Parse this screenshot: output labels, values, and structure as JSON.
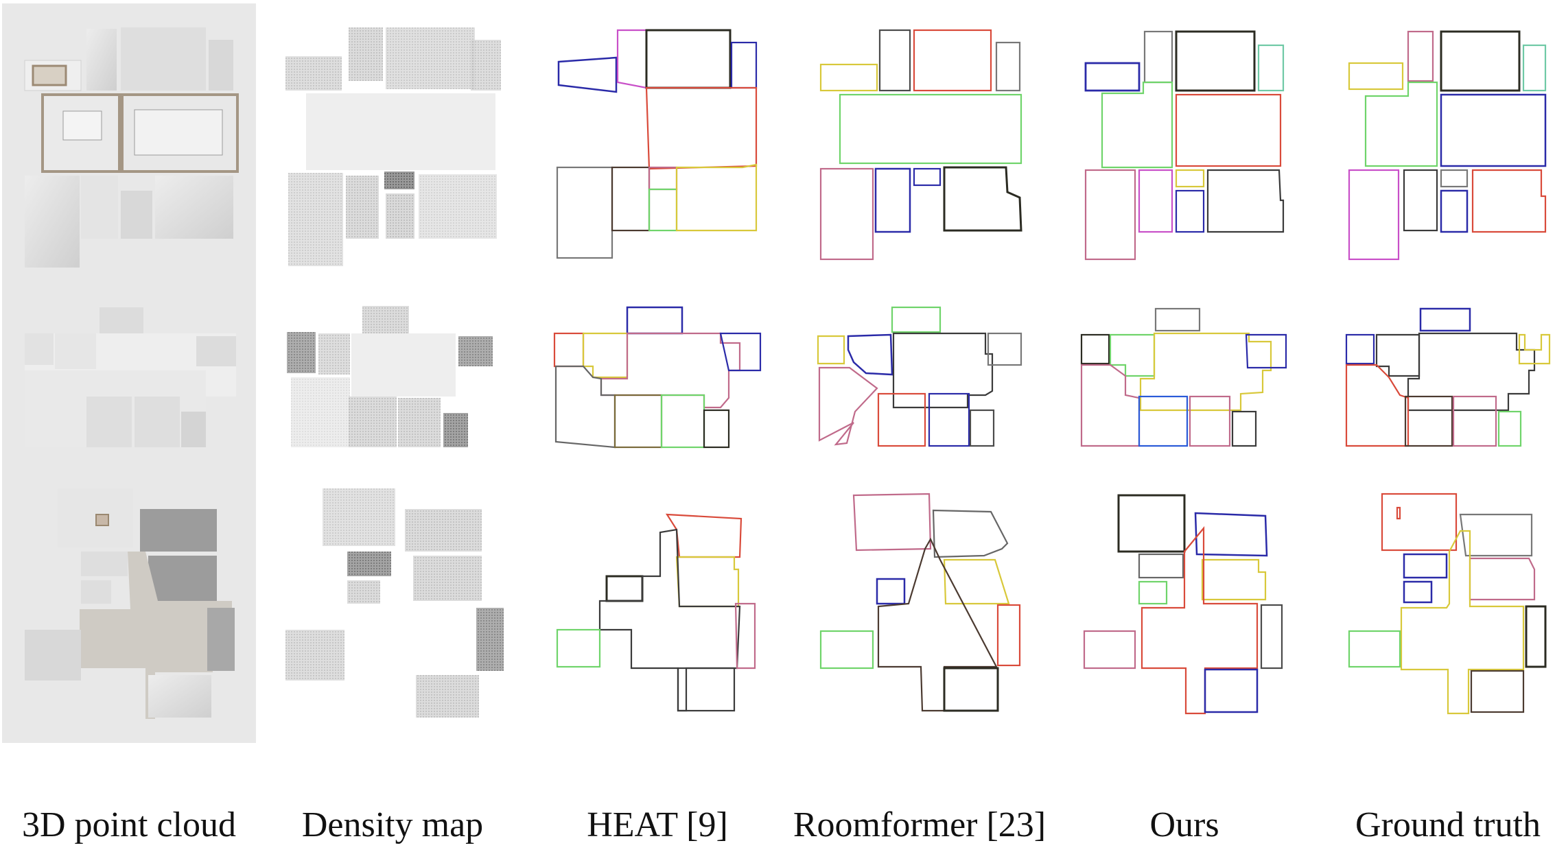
{
  "figure": {
    "columns": [
      {
        "key": "point_cloud",
        "label": "3D point cloud"
      },
      {
        "key": "density",
        "label": "Density map"
      },
      {
        "key": "heat",
        "label": "HEAT [9]"
      },
      {
        "key": "roomformer",
        "label": "Roomformer [23]"
      },
      {
        "key": "ours",
        "label": "Ours"
      },
      {
        "key": "gt",
        "label": "Ground truth"
      }
    ],
    "rows": 3,
    "colors": {
      "red": "#d94a3a",
      "green": "#6fd46a",
      "blue": "#2a2aa8",
      "yellow": "#d8c83a",
      "magenta": "#c84fc8",
      "black": "#2b2b22",
      "gray": "#777777",
      "pink": "#c06a8a",
      "teal": "#6fc9a6",
      "olive": "#7a6a3a"
    }
  }
}
